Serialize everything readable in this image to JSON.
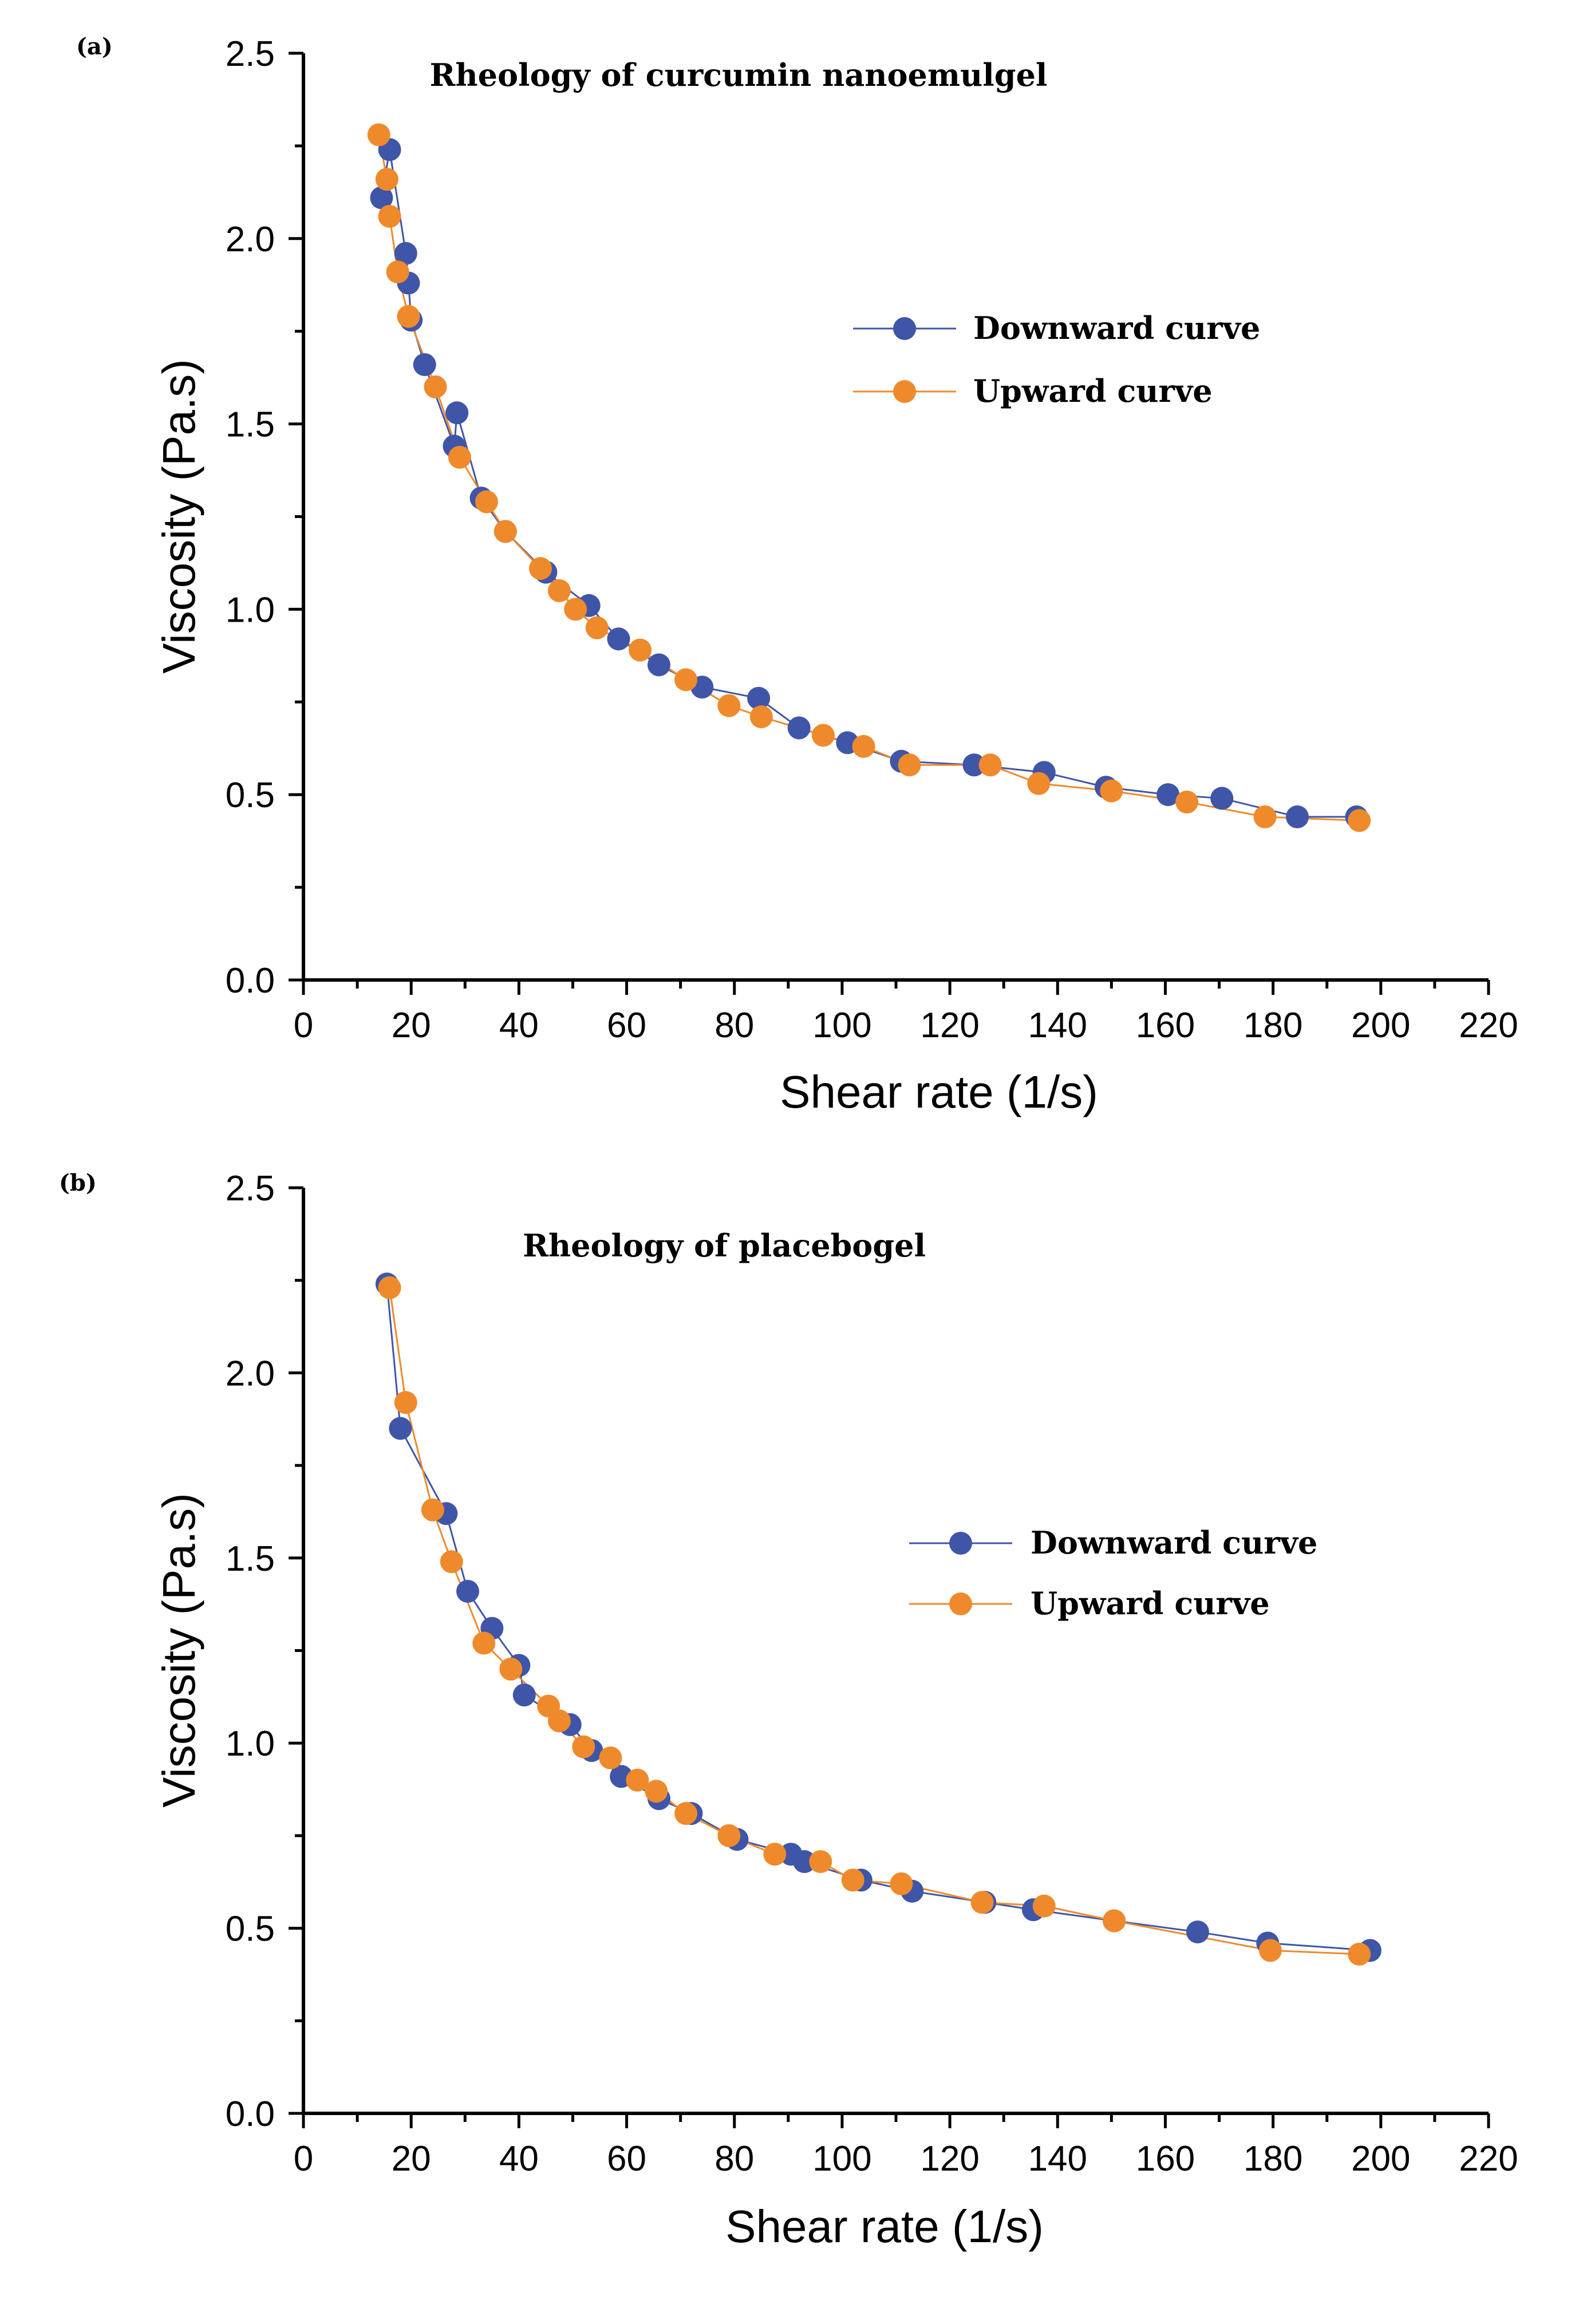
{
  "chart_data": [
    {
      "type": "scatter",
      "panel_label": "(a)",
      "title": "Rheology of curcumin nanoemulgel",
      "xlabel": "Shear rate (1/s)",
      "ylabel": "Viscosity (Pa.s)",
      "xlim": [
        0,
        220
      ],
      "ylim": [
        0,
        2.5
      ],
      "x_ticks": [
        "0",
        "20",
        "40",
        "60",
        "80",
        "100",
        "120",
        "140",
        "160",
        "180",
        "200",
        "220"
      ],
      "y_ticks": [
        "0.0",
        "0.5",
        "1.0",
        "1.5",
        "2.0",
        "2.5"
      ],
      "legend_position": "upper-right",
      "series": [
        {
          "name": "Downward curve",
          "color": "#3f55a8",
          "x": [
            14.5,
            16,
            19,
            19.5,
            20,
            22.5,
            28,
            28.5,
            33,
            37.5,
            45,
            53,
            58.5,
            66,
            74,
            84.5,
            92,
            101,
            111,
            124.5,
            137.5,
            149,
            160.5,
            170.5,
            184.5,
            195.5
          ],
          "y": [
            2.11,
            2.24,
            1.96,
            1.88,
            1.78,
            1.66,
            1.44,
            1.53,
            1.3,
            1.21,
            1.1,
            1.01,
            0.92,
            0.85,
            0.79,
            0.76,
            0.68,
            0.64,
            0.59,
            0.58,
            0.56,
            0.52,
            0.5,
            0.49,
            0.44,
            0.44
          ]
        },
        {
          "name": "Upward curve",
          "color": "#ef8a2c",
          "x": [
            14,
            15.5,
            16,
            17.5,
            19.5,
            24.5,
            29,
            34,
            37.5,
            44,
            47.5,
            50.5,
            54.5,
            62.5,
            71,
            79,
            85,
            96.5,
            104,
            112.5,
            127.5,
            136.5,
            150,
            164,
            178.5,
            196
          ],
          "y": [
            2.28,
            2.16,
            2.06,
            1.91,
            1.79,
            1.6,
            1.41,
            1.29,
            1.21,
            1.11,
            1.05,
            1.0,
            0.95,
            0.89,
            0.81,
            0.74,
            0.71,
            0.66,
            0.63,
            0.58,
            0.58,
            0.53,
            0.51,
            0.48,
            0.44,
            0.43
          ]
        }
      ]
    },
    {
      "type": "scatter",
      "panel_label": "(b)",
      "title": "Rheology of placebogel",
      "xlabel": "Shear rate (1/s)",
      "ylabel": "Viscosity (Pa.s)",
      "xlim": [
        0,
        220
      ],
      "ylim": [
        0,
        2.5
      ],
      "x_ticks": [
        "0",
        "20",
        "40",
        "60",
        "80",
        "100",
        "120",
        "140",
        "160",
        "180",
        "200",
        "220"
      ],
      "y_ticks": [
        "0.0",
        "0.5",
        "1.0",
        "1.5",
        "2.0",
        "2.5"
      ],
      "legend_position": "center-right",
      "series": [
        {
          "name": "Downward curve",
          "color": "#3f55a8",
          "x": [
            15.5,
            18,
            26.5,
            30.5,
            35,
            40,
            41,
            49.5,
            53.5,
            59,
            66,
            72,
            80.5,
            90.5,
            93,
            103.5,
            113,
            126.5,
            135.5,
            150.5,
            166,
            179,
            198
          ],
          "y": [
            2.24,
            1.85,
            1.62,
            1.41,
            1.31,
            1.21,
            1.13,
            1.05,
            0.98,
            0.91,
            0.85,
            0.81,
            0.74,
            0.7,
            0.68,
            0.63,
            0.6,
            0.57,
            0.55,
            0.52,
            0.49,
            0.46,
            0.44
          ]
        },
        {
          "name": "Upward curve",
          "color": "#ef8a2c",
          "x": [
            16,
            19,
            24,
            27.5,
            33.5,
            38.5,
            45.5,
            47.5,
            52,
            57,
            62,
            65.5,
            71,
            79,
            87.5,
            96,
            102,
            111,
            126,
            137.5,
            150.5,
            179.5,
            196
          ],
          "y": [
            2.23,
            1.92,
            1.63,
            1.49,
            1.27,
            1.2,
            1.1,
            1.06,
            0.99,
            0.96,
            0.9,
            0.87,
            0.81,
            0.75,
            0.7,
            0.68,
            0.63,
            0.62,
            0.57,
            0.56,
            0.52,
            0.44,
            0.43
          ]
        }
      ]
    }
  ]
}
